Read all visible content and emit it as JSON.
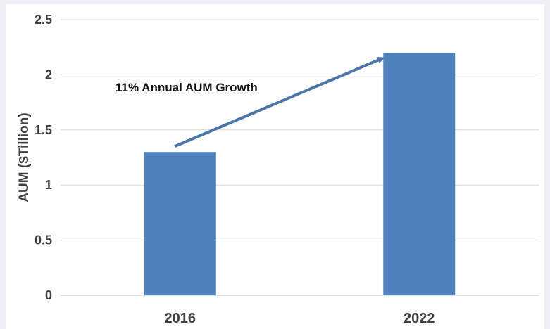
{
  "chart_data": {
    "type": "bar",
    "categories": [
      "2016",
      "2022"
    ],
    "values": [
      1.3,
      2.2
    ],
    "title": "",
    "xlabel": "",
    "ylabel": "AUM ($Tillion)",
    "ylim": [
      0,
      2.5
    ],
    "yticks": [
      "0",
      "0.5",
      "1",
      "1.5",
      "2",
      "2.5"
    ],
    "grid": true,
    "legend": "none",
    "bar_color": "#4f81bd",
    "annotation": {
      "text": "11% Annual AUM Growth",
      "arrow_from": {
        "category": "2016",
        "value": 1.35
      },
      "arrow_to": {
        "category": "2022",
        "value": 2.15
      },
      "arrow_color": "#4a76a8"
    }
  }
}
